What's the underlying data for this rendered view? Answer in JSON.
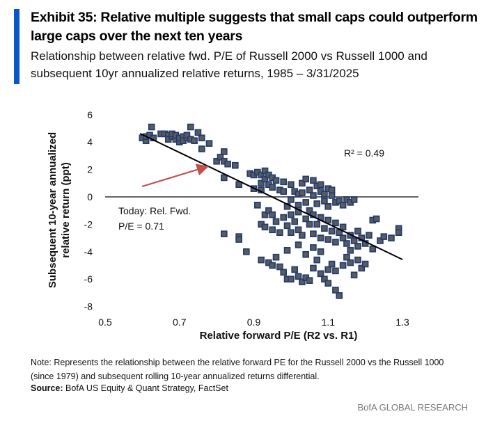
{
  "header": {
    "title": "Exhibit 35: Relative multiple suggests that small caps could outperform large caps over the next ten years",
    "subtitle": "Relationship between relative fwd. P/E of Russell 2000 vs Russell 1000 and subsequent 10yr annualized relative returns, 1985 – 3/31/2025",
    "accent_color": "#0a57c8"
  },
  "footer": {
    "note": "Note: Represents the relationship between the relative forward PE for the Russell 2000 vs the Russell 1000 (since 1979) and subsequent rolling 10-year annualized returns differential.",
    "source_label": "Source:",
    "source_text": "BofA US Equity & Quant Strategy, FactSet",
    "brand": "BofA GLOBAL RESEARCH"
  },
  "chart_data": {
    "type": "scatter",
    "xlabel": "Relative forward P/E (R2 vs. R1)",
    "ylabel": "Subsequent 10-year annualized relative return (ppt)",
    "xlim": [
      0.5,
      1.3
    ],
    "ylim": [
      -8,
      6
    ],
    "xticks": [
      "0.5",
      "0.7",
      "0.9",
      "1.1",
      "1.3"
    ],
    "yticks": [
      "6",
      "4",
      "2",
      "0",
      "-2",
      "-4",
      "-6",
      "-8"
    ],
    "grid": false,
    "r_squared_label": "R² = 0.49",
    "annotation": "Today: Rel. Fwd.\nP/E = 0.71",
    "annotation_lines": [
      "Today: Rel. Fwd.",
      "P/E = 0.71"
    ],
    "trendline": {
      "x": [
        0.594,
        1.3
      ],
      "y": [
        4.62,
        -4.57
      ]
    },
    "marker_fill": "#5b5b5b",
    "marker_edge": "#1f3a73",
    "arrow_color": "#c0504d",
    "points": [
      [
        0.6,
        4.3
      ],
      [
        0.61,
        4.1
      ],
      [
        0.61,
        4.4
      ],
      [
        0.62,
        4.5
      ],
      [
        0.625,
        5.1
      ],
      [
        0.63,
        4.3
      ],
      [
        0.65,
        4.6
      ],
      [
        0.66,
        4.6
      ],
      [
        0.67,
        4.5
      ],
      [
        0.67,
        4.2
      ],
      [
        0.68,
        4.4
      ],
      [
        0.68,
        4.6
      ],
      [
        0.69,
        4.2
      ],
      [
        0.69,
        4.5
      ],
      [
        0.7,
        4.0
      ],
      [
        0.7,
        4.3
      ],
      [
        0.71,
        4.4
      ],
      [
        0.71,
        4.1
      ],
      [
        0.72,
        4.3
      ],
      [
        0.72,
        4.5
      ],
      [
        0.73,
        5.1
      ],
      [
        0.73,
        4.2
      ],
      [
        0.74,
        4.1
      ],
      [
        0.75,
        4.7
      ],
      [
        0.76,
        4.3
      ],
      [
        0.76,
        3.5
      ],
      [
        0.78,
        3.9
      ],
      [
        0.8,
        2.6
      ],
      [
        0.81,
        2.9
      ],
      [
        0.82,
        3.3
      ],
      [
        0.82,
        2.6
      ],
      [
        0.83,
        2.4
      ],
      [
        0.82,
        1.4
      ],
      [
        0.85,
        2.3
      ],
      [
        0.86,
        0.9
      ],
      [
        0.89,
        1.7
      ],
      [
        0.9,
        1.6
      ],
      [
        0.9,
        0.6
      ],
      [
        0.91,
        1.8
      ],
      [
        0.92,
        1.6
      ],
      [
        0.92,
        1.0
      ],
      [
        0.92,
        0.5
      ],
      [
        0.93,
        1.9
      ],
      [
        0.93,
        1.3
      ],
      [
        0.94,
        1.6
      ],
      [
        0.94,
        0.9
      ],
      [
        0.95,
        1.4
      ],
      [
        0.95,
        0.7
      ],
      [
        0.96,
        1.2
      ],
      [
        0.97,
        0.5
      ],
      [
        0.98,
        0.4
      ],
      [
        0.98,
        1.1
      ],
      [
        0.99,
        -0.7
      ],
      [
        1.0,
        0.9
      ],
      [
        1.0,
        -0.2
      ],
      [
        1.01,
        0.4
      ],
      [
        1.02,
        0.2
      ],
      [
        1.02,
        -0.6
      ],
      [
        1.03,
        1.0
      ],
      [
        1.03,
        0.3
      ],
      [
        1.04,
        1.3
      ],
      [
        1.04,
        -0.4
      ],
      [
        1.05,
        0.5
      ],
      [
        1.05,
        -1.0
      ],
      [
        1.06,
        0.1
      ],
      [
        1.06,
        1.2
      ],
      [
        1.07,
        0.8
      ],
      [
        1.07,
        -0.5
      ],
      [
        1.08,
        0.4
      ],
      [
        1.08,
        0.9
      ],
      [
        1.09,
        0.2
      ],
      [
        1.09,
        -0.3
      ],
      [
        1.1,
        0.6
      ],
      [
        1.1,
        -0.7
      ],
      [
        1.11,
        0.1
      ],
      [
        1.11,
        0.5
      ],
      [
        1.12,
        -0.4
      ],
      [
        1.13,
        -0.3
      ],
      [
        1.14,
        -0.6
      ],
      [
        1.15,
        -0.2
      ],
      [
        1.16,
        -0.4
      ],
      [
        1.17,
        -0.2
      ],
      [
        0.91,
        -0.6
      ],
      [
        0.92,
        -2.0
      ],
      [
        0.93,
        -1.3
      ],
      [
        0.93,
        -2.2
      ],
      [
        0.94,
        -1.0
      ],
      [
        0.95,
        -1.3
      ],
      [
        0.95,
        -2.4
      ],
      [
        0.96,
        -1.8
      ],
      [
        0.97,
        -2.6
      ],
      [
        0.98,
        -1.5
      ],
      [
        0.99,
        -2.1
      ],
      [
        1.0,
        -1.3
      ],
      [
        1.0,
        -2.6
      ],
      [
        1.01,
        -1.8
      ],
      [
        1.02,
        -2.4
      ],
      [
        1.02,
        -1.1
      ],
      [
        1.03,
        -2.8
      ],
      [
        1.04,
        -1.6
      ],
      [
        1.05,
        -2.0
      ],
      [
        1.06,
        -2.7
      ],
      [
        1.06,
        -1.3
      ],
      [
        1.07,
        -2.0
      ],
      [
        1.08,
        -1.5
      ],
      [
        1.08,
        -3.0
      ],
      [
        1.09,
        -2.3
      ],
      [
        1.1,
        -1.7
      ],
      [
        1.1,
        -3.1
      ],
      [
        1.11,
        -2.5
      ],
      [
        1.12,
        -1.9
      ],
      [
        1.12,
        -3.3
      ],
      [
        1.13,
        -2.6
      ],
      [
        1.14,
        -3.0
      ],
      [
        1.14,
        -2.2
      ],
      [
        1.15,
        -3.4
      ],
      [
        1.16,
        -2.8
      ],
      [
        1.17,
        -3.2
      ],
      [
        1.18,
        -2.5
      ],
      [
        1.18,
        -3.6
      ],
      [
        1.19,
        -3.0
      ],
      [
        1.2,
        -3.4
      ],
      [
        1.21,
        -2.8
      ],
      [
        1.22,
        -1.7
      ],
      [
        1.23,
        -1.6
      ],
      [
        1.24,
        -3.2
      ],
      [
        1.25,
        -2.9
      ],
      [
        1.27,
        -3.0
      ],
      [
        1.29,
        -2.3
      ],
      [
        1.29,
        -2.6
      ],
      [
        1.22,
        -3.8
      ],
      [
        1.16,
        -3.9
      ],
      [
        0.82,
        -2.7
      ],
      [
        0.86,
        -2.9
      ],
      [
        0.86,
        -3.1
      ],
      [
        0.88,
        -4.0
      ],
      [
        0.92,
        -4.6
      ],
      [
        0.94,
        -4.8
      ],
      [
        0.95,
        -5.0
      ],
      [
        0.97,
        -5.1
      ],
      [
        0.98,
        -5.5
      ],
      [
        0.99,
        -6.0
      ],
      [
        1.0,
        -6.0
      ],
      [
        1.01,
        -5.3
      ],
      [
        1.02,
        -5.8
      ],
      [
        1.03,
        -6.2
      ],
      [
        1.04,
        -5.9
      ],
      [
        1.05,
        -6.1
      ],
      [
        1.06,
        -5.2
      ],
      [
        1.07,
        -4.6
      ],
      [
        1.08,
        -5.6
      ],
      [
        1.09,
        -6.0
      ],
      [
        1.1,
        -5.3
      ],
      [
        1.1,
        -6.3
      ],
      [
        1.11,
        -4.9
      ],
      [
        1.12,
        -5.4
      ],
      [
        1.12,
        -6.8
      ],
      [
        1.13,
        -7.2
      ],
      [
        1.14,
        -5.0
      ],
      [
        1.15,
        -4.4
      ],
      [
        1.16,
        -4.8
      ],
      [
        1.17,
        -5.7
      ],
      [
        1.18,
        -4.6
      ],
      [
        1.19,
        -5.2
      ],
      [
        1.2,
        -4.9
      ],
      [
        1.04,
        -4.2
      ],
      [
        1.06,
        -3.7
      ],
      [
        1.08,
        -4.0
      ],
      [
        1.02,
        -3.5
      ],
      [
        0.99,
        -3.9
      ],
      [
        0.96,
        -4.4
      ]
    ]
  }
}
